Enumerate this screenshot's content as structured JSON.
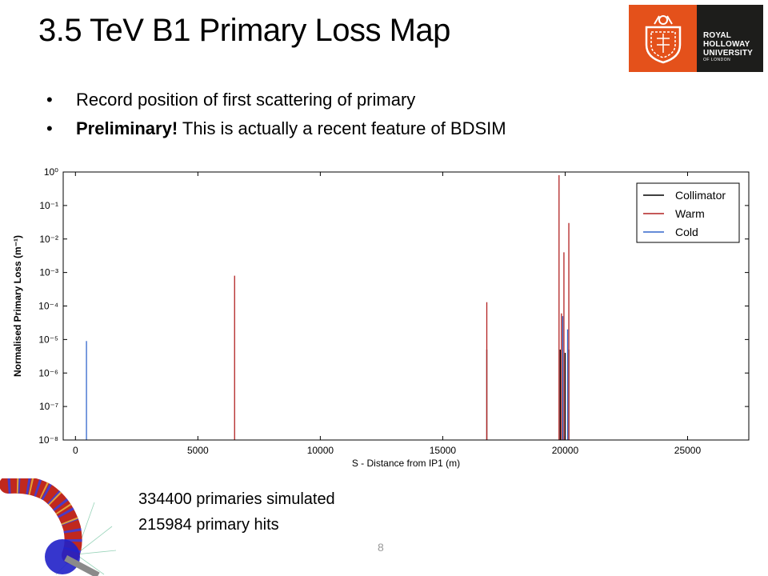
{
  "slide": {
    "title": "3.5 TeV B1 Primary Loss Map",
    "bullets": [
      {
        "bold": "",
        "text": "Record position of first scattering of primary"
      },
      {
        "bold": "Preliminary!",
        "text": "  This is actually a recent feature of BDSIM"
      }
    ],
    "stats": [
      "334400 primaries simulated",
      "215984 primary hits"
    ],
    "page_number": "8",
    "logo": {
      "line1": "ROYAL",
      "line2": "HOLLOWAY",
      "line3": "UNIVERSITY",
      "line4": "OF LONDON",
      "colors": {
        "crest_bg": "#e4511b",
        "name_bg": "#1d1d1b"
      }
    }
  },
  "chart_data": {
    "type": "bar",
    "title": "",
    "xlabel": "S - Distance from IP1 (m)",
    "ylabel": "Normalised Primary Loss (m⁻¹)",
    "xlim": [
      -500,
      27500
    ],
    "ylim": [
      1e-08,
      1
    ],
    "yscale": "log",
    "xticks": [
      0,
      5000,
      10000,
      15000,
      20000,
      25000
    ],
    "yticks": [
      {
        "value": 1.0,
        "label": "10⁰"
      },
      {
        "value": 0.1,
        "label": "10⁻¹"
      },
      {
        "value": 0.01,
        "label": "10⁻²"
      },
      {
        "value": 0.001,
        "label": "10⁻³"
      },
      {
        "value": 0.0001,
        "label": "10⁻⁴"
      },
      {
        "value": 1e-05,
        "label": "10⁻⁵"
      },
      {
        "value": 1e-06,
        "label": "10⁻⁶"
      },
      {
        "value": 1e-07,
        "label": "10⁻⁷"
      },
      {
        "value": 1e-08,
        "label": "10⁻⁸"
      }
    ],
    "grid": false,
    "legend_position": "top-right",
    "series": [
      {
        "name": "Collimator",
        "color": "#000000",
        "x": [
          16800,
          19800,
          20000,
          20150
        ],
        "y": [
          5e-06,
          5e-06,
          4e-06,
          5e-06
        ]
      },
      {
        "name": "Warm",
        "color": "#b22222",
        "x": [
          6500,
          16800,
          19750,
          19850,
          19950,
          20150
        ],
        "y": [
          0.0008,
          0.00013,
          0.8,
          6e-05,
          0.004,
          0.03
        ]
      },
      {
        "name": "Cold",
        "color": "#3366cc",
        "x": [
          450,
          19900,
          20100
        ],
        "y": [
          9e-06,
          5e-05,
          2e-05
        ]
      }
    ]
  }
}
